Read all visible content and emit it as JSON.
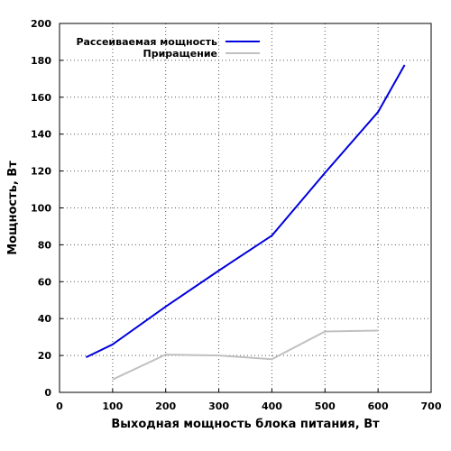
{
  "chart_data": {
    "type": "line",
    "xlabel": "Выходная мощность блока питания, Вт",
    "ylabel": "Мощность, Вт",
    "xlim": [
      0,
      700
    ],
    "ylim": [
      0,
      200
    ],
    "xticks": [
      0,
      100,
      200,
      300,
      400,
      500,
      600,
      700
    ],
    "yticks": [
      0,
      20,
      40,
      60,
      80,
      100,
      120,
      140,
      160,
      180,
      200
    ],
    "grid": true,
    "legend_position": "top-left",
    "series": [
      {
        "name": "Рассеиваемая мощность",
        "color": "#0000dd",
        "x": [
          50,
          100,
          200,
          300,
          400,
          500,
          600,
          650
        ],
        "y": [
          19,
          26,
          46.5,
          66,
          85,
          119,
          152,
          177.5
        ]
      },
      {
        "name": "Приращение",
        "color": "#c0c0c0",
        "x": [
          100,
          200,
          300,
          400,
          500,
          600
        ],
        "y": [
          7,
          20.5,
          20,
          18,
          33,
          33.5
        ]
      }
    ]
  }
}
